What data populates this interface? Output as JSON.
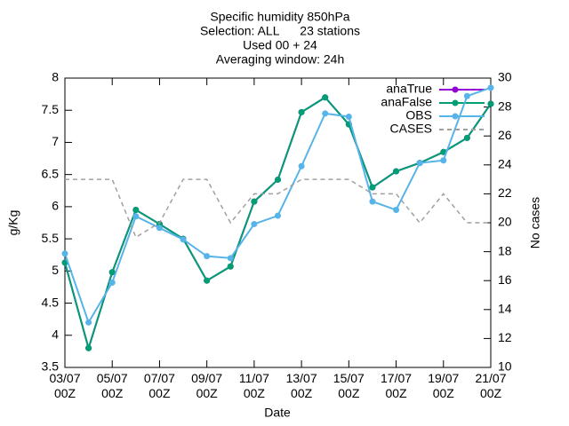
{
  "chart_data": {
    "type": "line",
    "title": [
      "Specific humidity 850hPa",
      "Selection: ALL      23 stations",
      "Used 00 + 24",
      "Averaging window: 24h"
    ],
    "xlabel": "Date",
    "ylabel": "g/Kg",
    "y2label": "No cases",
    "categories": [
      "03/07\n00Z",
      null,
      "05/07\n00Z",
      null,
      "07/07\n00Z",
      null,
      "09/07\n00Z",
      null,
      "11/07\n00Z",
      null,
      "13/07\n00Z",
      null,
      "15/07\n00Z",
      null,
      "17/07\n00Z",
      null,
      "19/07\n00Z",
      null,
      "21/07\n00Z"
    ],
    "ylim": [
      3.5,
      8
    ],
    "yticks": [
      3.5,
      4,
      4.5,
      5,
      5.5,
      6,
      6.5,
      7,
      7.5,
      8
    ],
    "y2lim": [
      10,
      30
    ],
    "y2ticks": [
      10,
      12,
      14,
      16,
      18,
      20,
      22,
      24,
      26,
      28,
      30
    ],
    "legend": "top-right",
    "grid": false,
    "series": [
      {
        "name": "anaTrue",
        "color": "#9400d3",
        "markers": true,
        "values": [
          5.13,
          3.8,
          4.98,
          5.95,
          5.73,
          5.5,
          4.85,
          5.07,
          6.08,
          6.42,
          7.47,
          7.7,
          7.28,
          6.3,
          6.55,
          6.68,
          6.85,
          7.07,
          7.6
        ]
      },
      {
        "name": "anaFalse",
        "color": "#009e73",
        "markers": true,
        "values": [
          5.13,
          3.8,
          4.98,
          5.95,
          5.73,
          5.5,
          4.85,
          5.07,
          6.08,
          6.42,
          7.47,
          7.7,
          7.28,
          6.3,
          6.55,
          6.68,
          6.85,
          7.07,
          7.6
        ]
      },
      {
        "name": "OBS",
        "color": "#56b4e9",
        "markers": true,
        "values": [
          5.27,
          4.2,
          4.82,
          5.85,
          5.67,
          5.49,
          5.23,
          5.2,
          5.73,
          5.86,
          6.63,
          7.45,
          7.4,
          6.08,
          5.95,
          6.68,
          6.72,
          7.72,
          7.85
        ]
      },
      {
        "name": "CASES",
        "color": "#a0a0a0",
        "markers": false,
        "dashed": true,
        "axis": "y2",
        "values": [
          23,
          23,
          23,
          19,
          20,
          23,
          23,
          20,
          22,
          22,
          23,
          23,
          23,
          22,
          22,
          20,
          22,
          20,
          20
        ]
      }
    ]
  }
}
